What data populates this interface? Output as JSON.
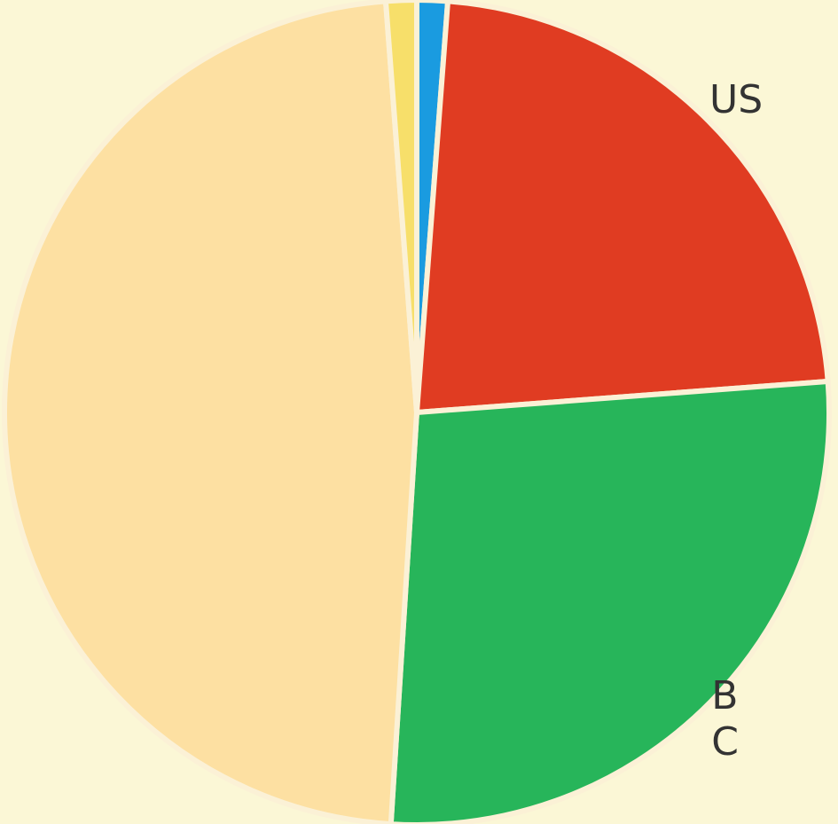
{
  "chart_data": {
    "type": "pie",
    "categories": [
      null,
      "US",
      [
        "B",
        "C"
      ],
      null,
      null
    ],
    "values": [
      1.2,
      22.6,
      27.2,
      47.8,
      1.2
    ],
    "colors": [
      "#1a9be0",
      "#e03c22",
      "#27b55a",
      "#fde0a2",
      "#f7df6a"
    ]
  }
}
